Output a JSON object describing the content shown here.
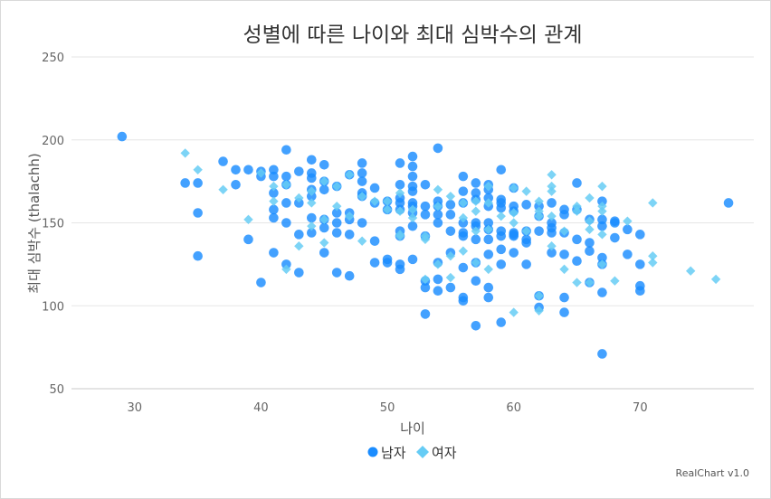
{
  "chart_data": {
    "type": "scatter",
    "title": "성별에 따른 나이와 최대 심박수의 관계",
    "xlabel": "나이",
    "ylabel": "최대 심박수 (thalachh)",
    "xlim": [
      25,
      79
    ],
    "ylim": [
      50,
      250
    ],
    "x_ticks": [
      30,
      40,
      50,
      60,
      70
    ],
    "y_ticks": [
      50,
      100,
      150,
      200,
      250
    ],
    "grid": true,
    "legend_position": "bottom",
    "credits": "RealChart v1.0",
    "series": [
      {
        "name": "남자",
        "marker": "circle",
        "color": "#1a8cff",
        "points": [
          [
            29,
            202
          ],
          [
            34,
            174
          ],
          [
            35,
            174
          ],
          [
            35,
            156
          ],
          [
            35,
            130
          ],
          [
            37,
            187
          ],
          [
            38,
            182
          ],
          [
            38,
            173
          ],
          [
            39,
            182
          ],
          [
            39,
            140
          ],
          [
            40,
            181
          ],
          [
            40,
            178
          ],
          [
            40,
            114
          ],
          [
            41,
            182
          ],
          [
            41,
            178
          ],
          [
            41,
            168
          ],
          [
            41,
            158
          ],
          [
            41,
            153
          ],
          [
            41,
            132
          ],
          [
            42,
            194
          ],
          [
            42,
            178
          ],
          [
            42,
            173
          ],
          [
            42,
            162
          ],
          [
            42,
            150
          ],
          [
            42,
            125
          ],
          [
            43,
            181
          ],
          [
            43,
            162
          ],
          [
            43,
            143
          ],
          [
            43,
            120
          ],
          [
            44,
            188
          ],
          [
            44,
            180
          ],
          [
            44,
            177
          ],
          [
            44,
            170
          ],
          [
            44,
            166
          ],
          [
            44,
            153
          ],
          [
            44,
            144
          ],
          [
            45,
            185
          ],
          [
            45,
            175
          ],
          [
            45,
            170
          ],
          [
            45,
            152
          ],
          [
            45,
            147
          ],
          [
            45,
            132
          ],
          [
            46,
            172
          ],
          [
            46,
            156
          ],
          [
            46,
            150
          ],
          [
            46,
            144
          ],
          [
            46,
            120
          ],
          [
            47,
            179
          ],
          [
            47,
            156
          ],
          [
            47,
            152
          ],
          [
            47,
            143
          ],
          [
            47,
            118
          ],
          [
            48,
            186
          ],
          [
            48,
            180
          ],
          [
            48,
            175
          ],
          [
            48,
            168
          ],
          [
            48,
            166
          ],
          [
            48,
            150
          ],
          [
            49,
            171
          ],
          [
            49,
            162
          ],
          [
            49,
            139
          ],
          [
            49,
            126
          ],
          [
            50,
            163
          ],
          [
            50,
            158
          ],
          [
            50,
            128
          ],
          [
            50,
            126
          ],
          [
            51,
            186
          ],
          [
            51,
            173
          ],
          [
            51,
            165
          ],
          [
            51,
            162
          ],
          [
            51,
            158
          ],
          [
            51,
            145
          ],
          [
            51,
            142
          ],
          [
            51,
            125
          ],
          [
            51,
            122
          ],
          [
            52,
            190
          ],
          [
            52,
            184
          ],
          [
            52,
            178
          ],
          [
            52,
            172
          ],
          [
            52,
            169
          ],
          [
            52,
            162
          ],
          [
            52,
            160
          ],
          [
            52,
            156
          ],
          [
            52,
            148
          ],
          [
            52,
            128
          ],
          [
            53,
            173
          ],
          [
            53,
            160
          ],
          [
            53,
            155
          ],
          [
            53,
            142
          ],
          [
            53,
            115
          ],
          [
            53,
            111
          ],
          [
            53,
            95
          ],
          [
            54,
            195
          ],
          [
            54,
            163
          ],
          [
            54,
            160
          ],
          [
            54,
            155
          ],
          [
            54,
            150
          ],
          [
            54,
            126
          ],
          [
            54,
            116
          ],
          [
            54,
            109
          ],
          [
            55,
            161
          ],
          [
            55,
            155
          ],
          [
            55,
            145
          ],
          [
            55,
            132
          ],
          [
            55,
            111
          ],
          [
            56,
            178
          ],
          [
            56,
            169
          ],
          [
            56,
            162
          ],
          [
            56,
            150
          ],
          [
            56,
            144
          ],
          [
            56,
            142
          ],
          [
            56,
            123
          ],
          [
            56,
            105
          ],
          [
            56,
            103
          ],
          [
            57,
            174
          ],
          [
            57,
            168
          ],
          [
            57,
            164
          ],
          [
            57,
            150
          ],
          [
            57,
            148
          ],
          [
            57,
            140
          ],
          [
            57,
            126
          ],
          [
            57,
            115
          ],
          [
            57,
            88
          ],
          [
            58,
            173
          ],
          [
            58,
            170
          ],
          [
            58,
            165
          ],
          [
            58,
            160
          ],
          [
            58,
            150
          ],
          [
            58,
            146
          ],
          [
            58,
            140
          ],
          [
            58,
            131
          ],
          [
            58,
            111
          ],
          [
            58,
            105
          ],
          [
            59,
            182
          ],
          [
            59,
            164
          ],
          [
            59,
            162
          ],
          [
            59,
            159
          ],
          [
            59,
            145
          ],
          [
            59,
            142
          ],
          [
            59,
            134
          ],
          [
            59,
            125
          ],
          [
            59,
            90
          ],
          [
            60,
            171
          ],
          [
            60,
            160
          ],
          [
            60,
            157
          ],
          [
            60,
            144
          ],
          [
            60,
            143
          ],
          [
            60,
            142
          ],
          [
            60,
            132
          ],
          [
            61,
            161
          ],
          [
            61,
            145
          ],
          [
            61,
            140
          ],
          [
            61,
            138
          ],
          [
            61,
            125
          ],
          [
            62,
            160
          ],
          [
            62,
            154
          ],
          [
            62,
            145
          ],
          [
            62,
            106
          ],
          [
            62,
            99
          ],
          [
            63,
            162
          ],
          [
            63,
            150
          ],
          [
            63,
            147
          ],
          [
            63,
            144
          ],
          [
            63,
            132
          ],
          [
            64,
            158
          ],
          [
            64,
            155
          ],
          [
            64,
            144
          ],
          [
            64,
            131
          ],
          [
            64,
            105
          ],
          [
            64,
            96
          ],
          [
            65,
            174
          ],
          [
            65,
            158
          ],
          [
            65,
            140
          ],
          [
            65,
            127
          ],
          [
            66,
            152
          ],
          [
            66,
            138
          ],
          [
            66,
            133
          ],
          [
            66,
            114
          ],
          [
            67,
            163
          ],
          [
            67,
            152
          ],
          [
            67,
            148
          ],
          [
            67,
            129
          ],
          [
            67,
            125
          ],
          [
            67,
            108
          ],
          [
            67,
            71
          ],
          [
            68,
            151
          ],
          [
            68,
            150
          ],
          [
            68,
            141
          ],
          [
            69,
            146
          ],
          [
            69,
            131
          ],
          [
            70,
            143
          ],
          [
            70,
            125
          ],
          [
            70,
            112
          ],
          [
            70,
            109
          ],
          [
            77,
            162
          ]
        ]
      },
      {
        "name": "여자",
        "marker": "diamond",
        "color": "#66ccf5",
        "points": [
          [
            34,
            192
          ],
          [
            35,
            182
          ],
          [
            37,
            170
          ],
          [
            39,
            152
          ],
          [
            40,
            180
          ],
          [
            41,
            172
          ],
          [
            41,
            163
          ],
          [
            42,
            173
          ],
          [
            42,
            122
          ],
          [
            43,
            165
          ],
          [
            43,
            136
          ],
          [
            44,
            169
          ],
          [
            44,
            162
          ],
          [
            44,
            148
          ],
          [
            45,
            175
          ],
          [
            45,
            152
          ],
          [
            45,
            138
          ],
          [
            46,
            172
          ],
          [
            46,
            160
          ],
          [
            47,
            179
          ],
          [
            47,
            154
          ],
          [
            48,
            166
          ],
          [
            48,
            139
          ],
          [
            49,
            163
          ],
          [
            50,
            163
          ],
          [
            50,
            158
          ],
          [
            51,
            168
          ],
          [
            51,
            157
          ],
          [
            51,
            143
          ],
          [
            51,
            142
          ],
          [
            52,
            158
          ],
          [
            52,
            153
          ],
          [
            53,
            142
          ],
          [
            53,
            140
          ],
          [
            53,
            116
          ],
          [
            54,
            170
          ],
          [
            54,
            160
          ],
          [
            54,
            125
          ],
          [
            55,
            166
          ],
          [
            55,
            130
          ],
          [
            55,
            117
          ],
          [
            56,
            162
          ],
          [
            56,
            153
          ],
          [
            56,
            133
          ],
          [
            57,
            163
          ],
          [
            57,
            157
          ],
          [
            57,
            145
          ],
          [
            57,
            126
          ],
          [
            58,
            172
          ],
          [
            58,
            162
          ],
          [
            58,
            146
          ],
          [
            58,
            122
          ],
          [
            59,
            154
          ],
          [
            60,
            171
          ],
          [
            60,
            156
          ],
          [
            60,
            150
          ],
          [
            60,
            96
          ],
          [
            61,
            169
          ],
          [
            61,
            145
          ],
          [
            62,
            163
          ],
          [
            62,
            157
          ],
          [
            62,
            154
          ],
          [
            62,
            106
          ],
          [
            62,
            97
          ],
          [
            63,
            179
          ],
          [
            63,
            172
          ],
          [
            63,
            169
          ],
          [
            63,
            154
          ],
          [
            63,
            136
          ],
          [
            64,
            145
          ],
          [
            64,
            122
          ],
          [
            65,
            160
          ],
          [
            65,
            157
          ],
          [
            65,
            114
          ],
          [
            66,
            165
          ],
          [
            66,
            151
          ],
          [
            66,
            146
          ],
          [
            66,
            114
          ],
          [
            67,
            172
          ],
          [
            67,
            160
          ],
          [
            67,
            157
          ],
          [
            67,
            143
          ],
          [
            67,
            125
          ],
          [
            68,
            115
          ],
          [
            69,
            151
          ],
          [
            71,
            162
          ],
          [
            71,
            130
          ],
          [
            71,
            126
          ],
          [
            74,
            121
          ],
          [
            76,
            116
          ]
        ]
      }
    ]
  }
}
